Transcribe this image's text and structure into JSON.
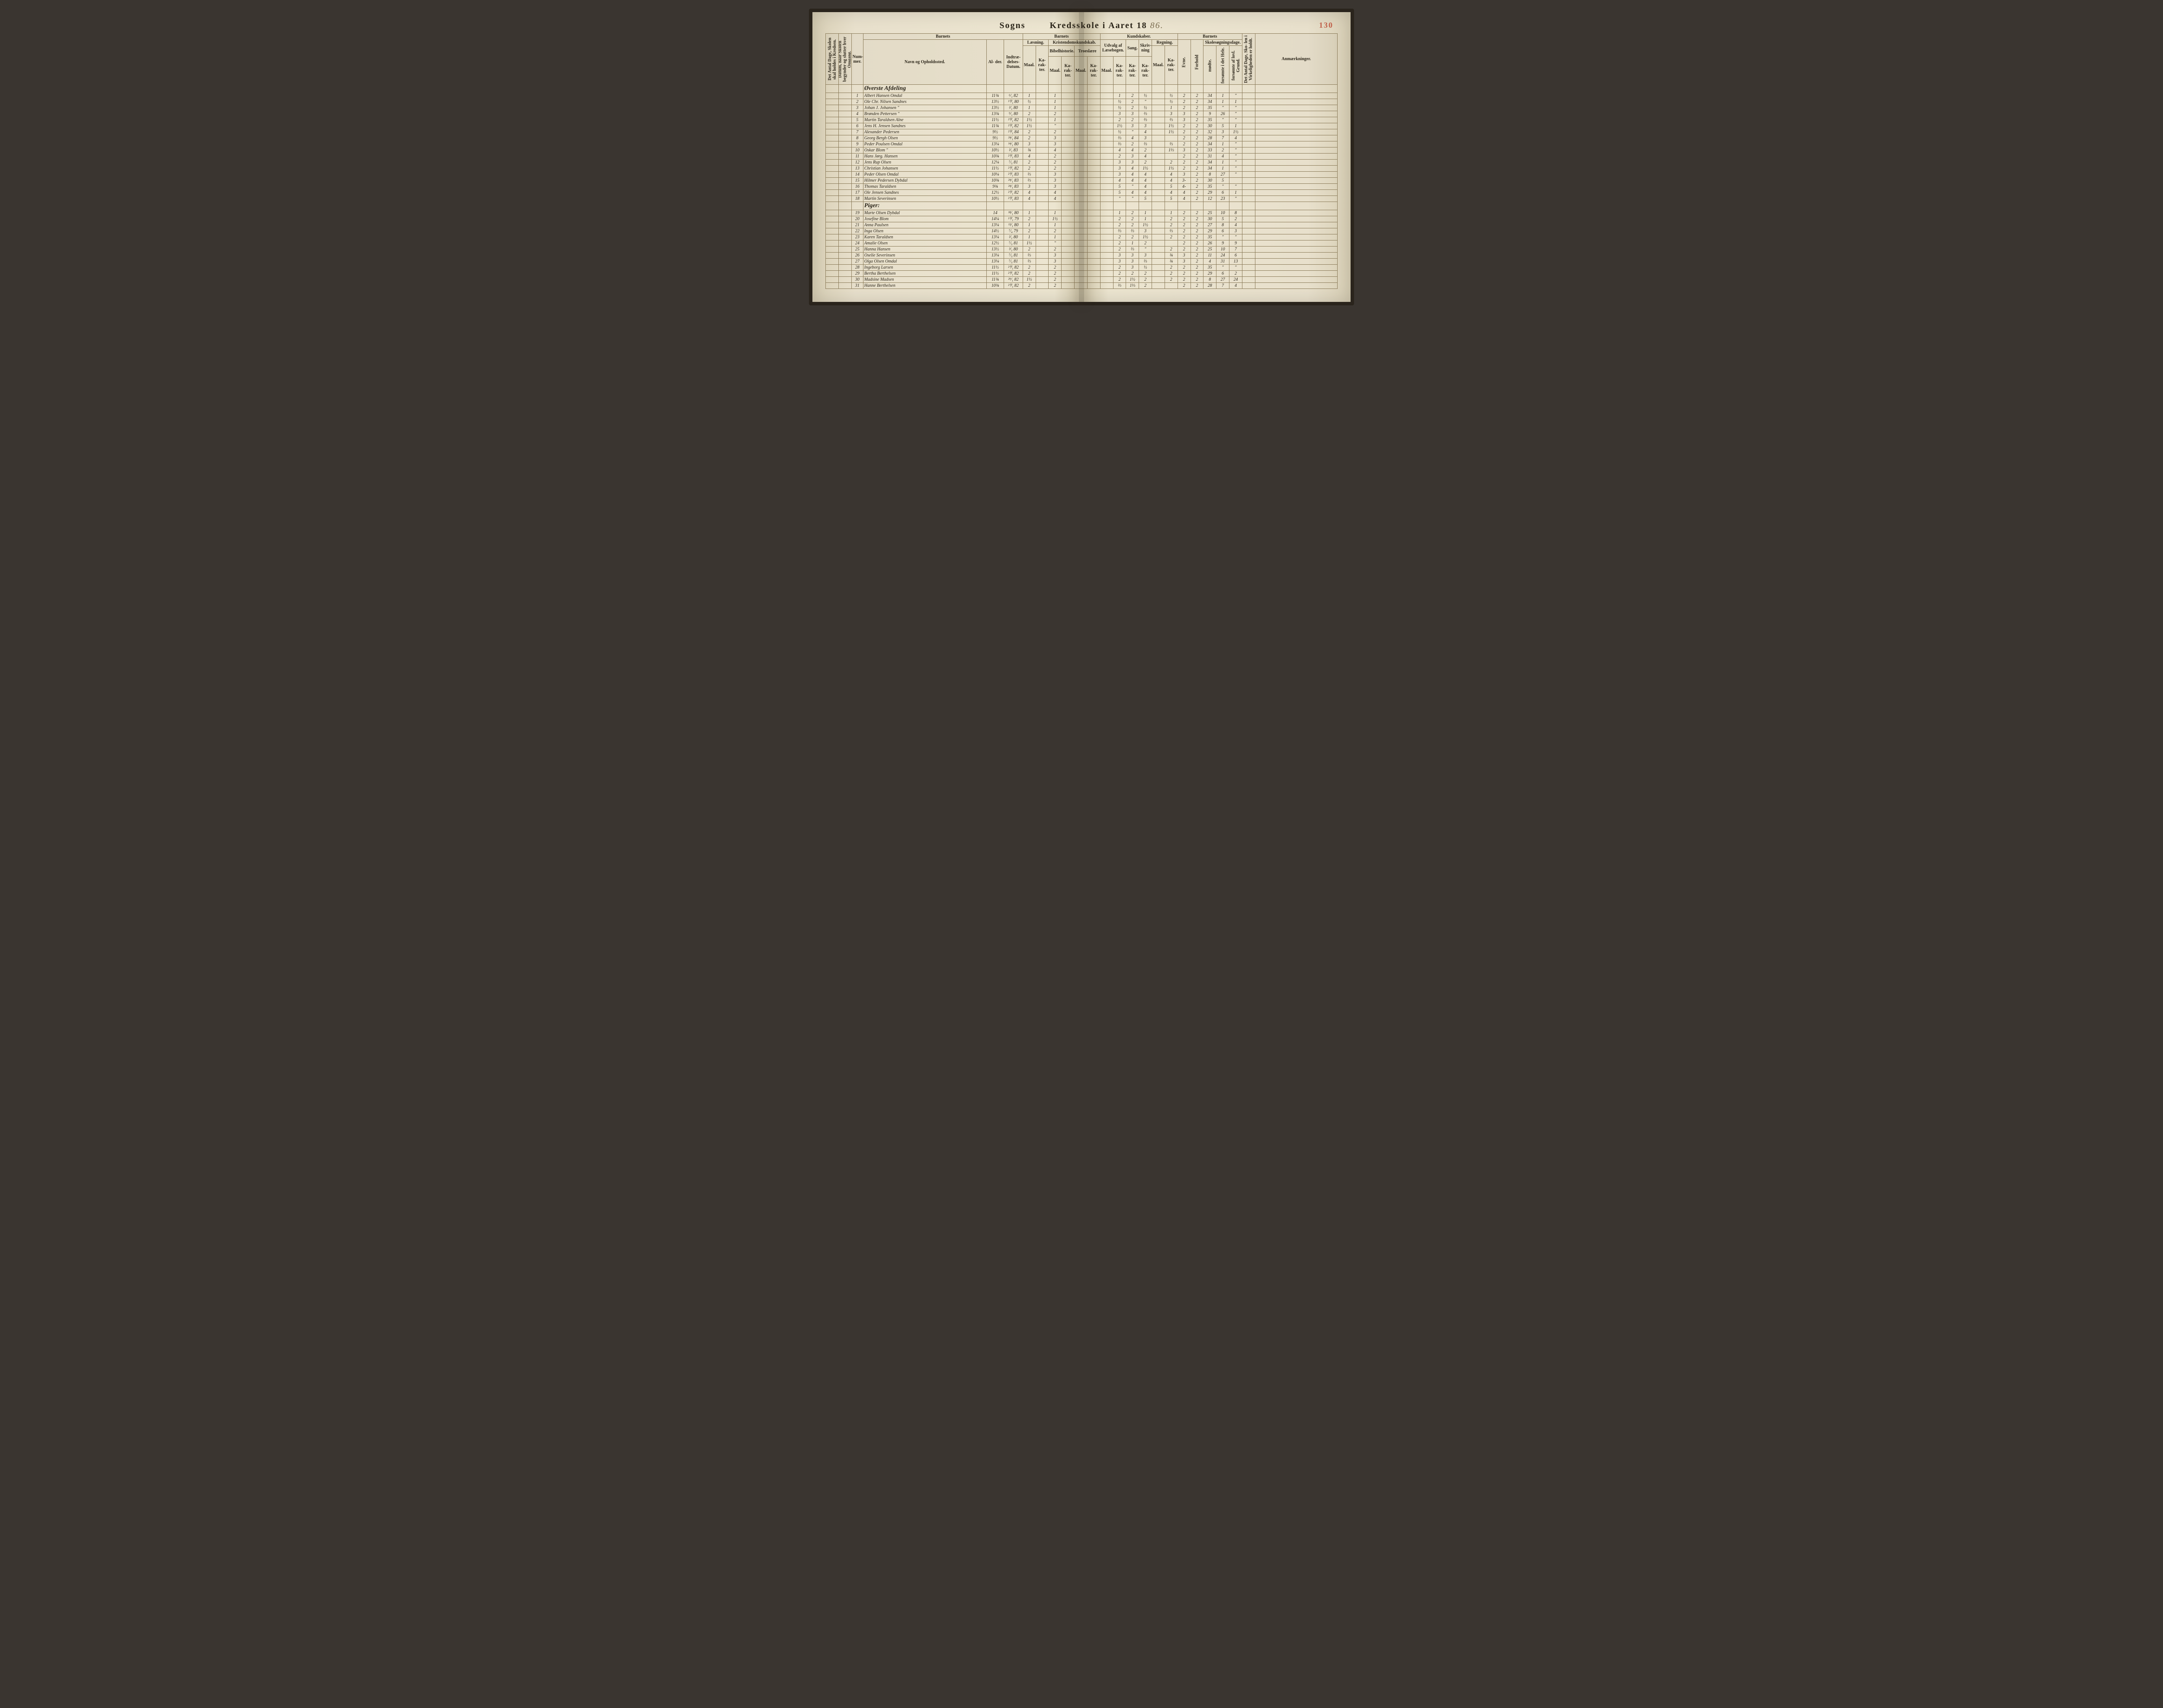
{
  "title_left": "Sogns",
  "title_right": "Kredsskole i Aaret 18",
  "year_suffix": "86.",
  "page_number": "130",
  "headers": {
    "antal_dage": "Det Antal Dage, Skolen skal holdes i Kredsen.",
    "datum": "Datum, naar Skolen begynder og slutter hver Omgang.",
    "nummer": "Num-\nmer.",
    "barnets": "Barnets",
    "navn": "Navn og Opholdssted.",
    "alder": "Al-\nder.",
    "indtr": "Indtræ-\ndelses-\nDatum.",
    "laesning": "Læsning.",
    "kristendom": "Kristendomskundskab.",
    "bibel": "Bibelhistorie.",
    "troes": "Troeslære",
    "kundskaber": "Kundskaber.",
    "udvalg": "Udvalg af\nLæsebogen.",
    "sang": "Sang.",
    "skriv": "Skriv-\nning",
    "regning": "Regning.",
    "evne": "Evne.",
    "forhold": "Forhold",
    "skolesogn": "Skolesøgningsdage.",
    "modte": "mødte.",
    "forsomte_hele": "forsømte i\ndet Hele.",
    "forsomte_lov": "forsømte af\nlovl. Grund.",
    "virkeligheden": "Det Antal Dage, Sko-\nlen i Virkeligheden\ner holdt.",
    "anm": "Anmærkninger.",
    "maal": "Maal.",
    "karakter": "Ka-\nrak-\nter."
  },
  "sections": [
    {
      "label": "Øverste Afdeling"
    },
    {
      "label": "Piger:"
    }
  ],
  "rows": [
    {
      "n": "1",
      "name": "Albert Hansen Omdal",
      "age": "11¾",
      "date": "⁶⁄₁ 82",
      "l_m": "1",
      "l_k": "",
      "b_m": "1",
      "b_k": "",
      "t_m": "",
      "u_m": "",
      "u_k": "1",
      "sa": "2",
      "sk": "½",
      "r_m": "",
      "r_k": "½",
      "ev": "2",
      "fo": "2",
      "md": "34",
      "f1": "1",
      "f2": "\"",
      "anm": ""
    },
    {
      "n": "2",
      "name": "Ole Chr. Nilsen Sandnes",
      "age": "13½",
      "date": "¹⁰⁄₁ 80",
      "l_m": "½",
      "l_k": "",
      "b_m": "1",
      "b_k": "",
      "t_m": "",
      "u_m": "",
      "u_k": "½",
      "sa": "2",
      "sk": "\"",
      "r_m": "",
      "r_k": "½",
      "ev": "2",
      "fo": "2",
      "md": "34",
      "f1": "1",
      "f2": "1",
      "anm": ""
    },
    {
      "n": "3",
      "name": "Johan J. Johansen   \"",
      "age": "13½",
      "date": "²⁄₁ 80",
      "l_m": "1",
      "l_k": "",
      "b_m": "1",
      "b_k": "",
      "t_m": "",
      "u_m": "",
      "u_k": "½",
      "sa": "2",
      "sk": "½",
      "r_m": "",
      "r_k": "1",
      "ev": "2",
      "fo": "2",
      "md": "35",
      "f1": "\"",
      "f2": "\"",
      "anm": ""
    },
    {
      "n": "4",
      "name": "Brønden Pettersen   \"",
      "age": "13¾",
      "date": "⁹⁄₁ 80",
      "l_m": "2",
      "l_k": "",
      "b_m": "2",
      "b_k": "",
      "t_m": "",
      "u_m": "",
      "u_k": "3",
      "sa": "3",
      "sk": "⅔",
      "r_m": "",
      "r_k": "3",
      "ev": "3",
      "fo": "2",
      "md": "9",
      "f1": "26",
      "f2": "\"",
      "anm": ""
    },
    {
      "n": "5",
      "name": "Martin Taraldsen Alne",
      "age": "11½",
      "date": "²⁰⁄₁ 82",
      "l_m": "1½",
      "l_k": "",
      "b_m": "1",
      "b_k": "",
      "t_m": "",
      "u_m": "",
      "u_k": "2",
      "sa": "2",
      "sk": "⅔",
      "r_m": "",
      "r_k": "⅔",
      "ev": "3",
      "fo": "2",
      "md": "35",
      "f1": "\"",
      "f2": "\"",
      "anm": ""
    },
    {
      "n": "6",
      "name": "Jens H. Jensen Sandnes",
      "age": "11¾",
      "date": "²⁰⁄₁ 82",
      "l_m": "1½",
      "l_k": "",
      "b_m": "\"",
      "b_k": "",
      "t_m": "",
      "u_m": "",
      "u_k": "1½",
      "sa": "3",
      "sk": "3",
      "r_m": "",
      "r_k": "1½",
      "ev": "2",
      "fo": "2",
      "md": "30",
      "f1": "5",
      "f2": "1",
      "anm": ""
    },
    {
      "n": "7",
      "name": "Alexander Pedersen",
      "age": "9½",
      "date": "²⁰⁄₁ 84",
      "l_m": "2",
      "l_k": "",
      "b_m": "2",
      "b_k": "",
      "t_m": "",
      "u_m": "",
      "u_k": "½",
      "sa": "\"",
      "sk": "4",
      "r_m": "",
      "r_k": "1½",
      "ev": "2",
      "fo": "2",
      "md": "32",
      "f1": "3",
      "f2": "1½",
      "anm": ""
    },
    {
      "n": "8",
      "name": "Georg Bergh Olsen",
      "age": "9½",
      "date": "²⁴⁄₁ 84",
      "l_m": "2",
      "l_k": "",
      "b_m": "3",
      "b_k": "",
      "t_m": "",
      "u_m": "",
      "u_k": "⅔",
      "sa": "4",
      "sk": "3",
      "r_m": "",
      "r_k": "",
      "ev": "2",
      "fo": "2",
      "md": "28",
      "f1": "7",
      "f2": "4",
      "anm": ""
    },
    {
      "n": "9",
      "name": "Peder Poulsen Omdal",
      "age": "13¼",
      "date": "¹⁴⁄₁ 80",
      "l_m": "3",
      "l_k": "",
      "b_m": "3",
      "b_k": "",
      "t_m": "",
      "u_m": "",
      "u_k": "⅔",
      "sa": "2",
      "sk": "⅔",
      "r_m": "",
      "r_k": "⅔",
      "ev": "2",
      "fo": "2",
      "md": "34",
      "f1": "1",
      "f2": "\"",
      "anm": ""
    },
    {
      "n": "10",
      "name": "Oskar Blom     \"",
      "age": "10½",
      "date": "²⁄₁ 83",
      "l_m": "¾",
      "l_k": "",
      "b_m": "4",
      "b_k": "",
      "t_m": "",
      "u_m": "",
      "u_k": "4",
      "sa": "4",
      "sk": "2",
      "r_m": "",
      "r_k": "1⅓",
      "ev": "3",
      "fo": "2",
      "md": "33",
      "f1": "2",
      "f2": "\"",
      "anm": ""
    },
    {
      "n": "11",
      "name": "Hans Jørg. Hansen",
      "age": "10¾",
      "date": "²⁰⁄₁ 83",
      "l_m": "4",
      "l_k": "",
      "b_m": "2",
      "b_k": "",
      "t_m": "",
      "u_m": "",
      "u_k": "2",
      "sa": "3",
      "sk": "4",
      "r_m": "",
      "r_k": "",
      "ev": "2",
      "fo": "2",
      "md": "31",
      "f1": "4",
      "f2": "\"",
      "anm": ""
    },
    {
      "n": "12",
      "name": "Jens Rup Olsen",
      "age": "12¼",
      "date": "⁷⁄₅ 81",
      "l_m": "2",
      "l_k": "",
      "b_m": "2",
      "b_k": "",
      "t_m": "",
      "u_m": "",
      "u_k": "3",
      "sa": "3",
      "sk": "2",
      "r_m": "",
      "r_k": "2",
      "ev": "2",
      "fo": "2",
      "md": "34",
      "f1": "1",
      "f2": "\"",
      "anm": ""
    },
    {
      "n": "13",
      "name": "Christian Johansen",
      "age": "11½",
      "date": "²⁰⁄₁ 82",
      "l_m": "2",
      "l_k": "",
      "b_m": "2",
      "b_k": "",
      "t_m": "",
      "u_m": "",
      "u_k": "3",
      "sa": "4",
      "sk": "1½",
      "r_m": "",
      "r_k": "1½",
      "ev": "2",
      "fo": "2",
      "md": "34",
      "f1": "1",
      "f2": "\"",
      "anm": ""
    },
    {
      "n": "14",
      "name": "Peder Olsen Omdal",
      "age": "10¼",
      "date": "²⁰⁄₁ 83",
      "l_m": "⅔",
      "l_k": "",
      "b_m": "3",
      "b_k": "",
      "t_m": "",
      "u_m": "",
      "u_k": "3",
      "sa": "4",
      "sk": "4",
      "r_m": "",
      "r_k": "4",
      "ev": "3",
      "fo": "2",
      "md": "8",
      "f1": "27",
      "f2": "\"",
      "anm": ""
    },
    {
      "n": "15",
      "name": "Hilmer Pedersen Dybdal",
      "age": "10¾",
      "date": "²⁴⁄₁ 83",
      "l_m": "⅔",
      "l_k": "",
      "b_m": "3",
      "b_k": "",
      "t_m": "",
      "u_m": "",
      "u_k": "4",
      "sa": "4",
      "sk": "4",
      "r_m": "",
      "r_k": "4",
      "ev": "3-",
      "fo": "2",
      "md": "30",
      "f1": "5",
      "f2": "",
      "anm": ""
    },
    {
      "n": "16",
      "name": "Thomas Taraldsen",
      "age": "9¾",
      "date": "²⁴⁄₁ 83",
      "l_m": "3",
      "l_k": "",
      "b_m": "3",
      "b_k": "",
      "t_m": "",
      "u_m": "",
      "u_k": "5",
      "sa": "\"",
      "sk": "4",
      "r_m": "",
      "r_k": "5",
      "ev": "4-",
      "fo": "2",
      "md": "35",
      "f1": "\"",
      "f2": "\"",
      "anm": ""
    },
    {
      "n": "17",
      "name": "Ole Jensen Sandnes",
      "age": "12½",
      "date": "²⁰⁄₁ 82",
      "l_m": "4",
      "l_k": "",
      "b_m": "4",
      "b_k": "",
      "t_m": "",
      "u_m": "",
      "u_k": "5",
      "sa": "4",
      "sk": "4",
      "r_m": "",
      "r_k": "4",
      "ev": "4",
      "fo": "2",
      "md": "29",
      "f1": "6",
      "f2": "1",
      "anm": ""
    },
    {
      "n": "18",
      "name": "Martin Severinsen",
      "age": "10½",
      "date": "²⁰⁄₁ 83",
      "l_m": "4",
      "l_k": "",
      "b_m": "4",
      "b_k": "",
      "t_m": "",
      "u_m": "",
      "u_k": "\"",
      "sa": "\"",
      "sk": "5",
      "r_m": "",
      "r_k": "5",
      "ev": "4",
      "fo": "2",
      "md": "12",
      "f1": "23",
      "f2": "\"",
      "anm": ""
    },
    {
      "n": "19",
      "name": "Marte Olsen Dybdal",
      "age": "14",
      "date": "¹⁸⁄₁ 80",
      "l_m": "1",
      "l_k": "",
      "b_m": "1",
      "b_k": "",
      "t_m": "",
      "u_m": "",
      "u_k": "1",
      "sa": "2",
      "sk": "1",
      "r_m": "",
      "r_k": "1",
      "ev": "2",
      "fo": "2",
      "md": "25",
      "f1": "10",
      "f2": "8",
      "anm": ""
    },
    {
      "n": "20",
      "name": "Josefine Blom",
      "age": "14¼",
      "date": "¹⁰⁄₁ 79",
      "l_m": "2",
      "l_k": "",
      "b_m": "1½",
      "b_k": "",
      "t_m": "",
      "u_m": "",
      "u_k": "2",
      "sa": "2",
      "sk": "1",
      "r_m": "",
      "r_k": "2",
      "ev": "2",
      "fo": "2",
      "md": "30",
      "f1": "5",
      "f2": "2",
      "anm": ""
    },
    {
      "n": "21",
      "name": "Anna Paulsen",
      "age": "13¼",
      "date": "¹³⁄₁ 80",
      "l_m": "1",
      "l_k": "",
      "b_m": "1",
      "b_k": "",
      "t_m": "",
      "u_m": "",
      "u_k": "2",
      "sa": "2",
      "sk": "1½",
      "r_m": "",
      "r_k": "2",
      "ev": "2",
      "fo": "2",
      "md": "27",
      "f1": "8",
      "f2": "4",
      "anm": ""
    },
    {
      "n": "22",
      "name": "Inga Olsen",
      "age": "14½",
      "date": "⁷⁄₄ 79",
      "l_m": "2",
      "l_k": "",
      "b_m": "2",
      "b_k": "",
      "t_m": "",
      "u_m": "",
      "u_k": "⅔",
      "sa": "⅔",
      "sk": "3",
      "r_m": "",
      "r_k": "⅔",
      "ev": "2",
      "fo": "2",
      "md": "29",
      "f1": "6",
      "f2": "3",
      "anm": ""
    },
    {
      "n": "23",
      "name": "Karen Taraldsen",
      "age": "13¼",
      "date": "²⁄₁ 80",
      "l_m": "1",
      "l_k": "",
      "b_m": "1",
      "b_k": "",
      "t_m": "",
      "u_m": "",
      "u_k": "2",
      "sa": "2",
      "sk": "1½",
      "r_m": "",
      "r_k": "2",
      "ev": "2",
      "fo": "2",
      "md": "35",
      "f1": "\"",
      "f2": "\"",
      "anm": ""
    },
    {
      "n": "24",
      "name": "Amalie Olsen",
      "age": "12½",
      "date": "⁷⁄₅ 81",
      "l_m": "1½",
      "l_k": "",
      "b_m": "\"",
      "b_k": "",
      "t_m": "",
      "u_m": "",
      "u_k": "2",
      "sa": "1",
      "sk": "2",
      "r_m": "",
      "r_k": "",
      "ev": "2",
      "fo": "2",
      "md": "26",
      "f1": "9",
      "f2": "9",
      "anm": ""
    },
    {
      "n": "25",
      "name": "Hanna Hansen",
      "age": "13½",
      "date": "³⁄₁ 80",
      "l_m": "2",
      "l_k": "",
      "b_m": "2",
      "b_k": "",
      "t_m": "",
      "u_m": "",
      "u_k": "2",
      "sa": "⅔",
      "sk": "\"",
      "r_m": "",
      "r_k": "2",
      "ev": "2",
      "fo": "2",
      "md": "25",
      "f1": "10",
      "f2": "7",
      "anm": ""
    },
    {
      "n": "26",
      "name": "Oselie Severinsen",
      "age": "13¼",
      "date": "⁷⁄₅ 81",
      "l_m": "⅔",
      "l_k": "",
      "b_m": "3",
      "b_k": "",
      "t_m": "",
      "u_m": "",
      "u_k": "3",
      "sa": "3",
      "sk": "3",
      "r_m": "",
      "r_k": "¾",
      "ev": "3",
      "fo": "2",
      "md": "11",
      "f1": "24",
      "f2": "6",
      "anm": ""
    },
    {
      "n": "27",
      "name": "Olga Olsen Omdal",
      "age": "13¼",
      "date": "⁷⁄₅ 81",
      "l_m": "⅔",
      "l_k": "",
      "b_m": "3",
      "b_k": "",
      "t_m": "",
      "u_m": "",
      "u_k": "3",
      "sa": "3",
      "sk": "⅔",
      "r_m": "",
      "r_k": "¾",
      "ev": "3",
      "fo": "2",
      "md": "4",
      "f1": "31",
      "f2": "13",
      "anm": ""
    },
    {
      "n": "28",
      "name": "Ingeborg Larsen",
      "age": "11½",
      "date": "²⁰⁄₁ 82",
      "l_m": "2",
      "l_k": "",
      "b_m": "2",
      "b_k": "",
      "t_m": "",
      "u_m": "",
      "u_k": "2",
      "sa": "3",
      "sk": "½",
      "r_m": "",
      "r_k": "2",
      "ev": "2",
      "fo": "2",
      "md": "35",
      "f1": "\"",
      "f2": "\"",
      "anm": ""
    },
    {
      "n": "29",
      "name": "Bertha Berthelsen",
      "age": "11½",
      "date": "²⁰⁄₁ 82",
      "l_m": "2",
      "l_k": "",
      "b_m": "2",
      "b_k": "",
      "t_m": "",
      "u_m": "",
      "u_k": "2",
      "sa": "2",
      "sk": "2",
      "r_m": "",
      "r_k": "2",
      "ev": "2",
      "fo": "2",
      "md": "29",
      "f1": "6",
      "f2": "2",
      "anm": ""
    },
    {
      "n": "30",
      "name": "Madsine Madsen",
      "age": "11¾",
      "date": "²⁹⁄₁ 82",
      "l_m": "1½",
      "l_k": "",
      "b_m": "2",
      "b_k": "",
      "t_m": "",
      "u_m": "",
      "u_k": "2",
      "sa": "1½",
      "sk": "2",
      "r_m": "",
      "r_k": "2",
      "ev": "2",
      "fo": "2",
      "md": "8",
      "f1": "27",
      "f2": "24",
      "anm": ""
    },
    {
      "n": "31",
      "name": "Hanne Berthelsen",
      "age": "10¾",
      "date": "²⁰⁄₁ 82",
      "l_m": "2",
      "l_k": "",
      "b_m": "2",
      "b_k": "",
      "t_m": "",
      "u_m": "",
      "u_k": "⅔",
      "sa": "1⅓",
      "sk": "2",
      "r_m": "",
      "r_k": "",
      "ev": "2",
      "fo": "2",
      "md": "28",
      "f1": "7",
      "f2": "4",
      "anm": ""
    }
  ],
  "colors": {
    "paper": "#e8e0cc",
    "ink": "#2a2418",
    "handwriting": "#6b5a3a",
    "rule": "#8a7a58",
    "page_num": "#c0604a",
    "binding": "#2a241c"
  },
  "fontsizes": {
    "title": 20,
    "header": 10,
    "cell": 12,
    "section": 14
  }
}
